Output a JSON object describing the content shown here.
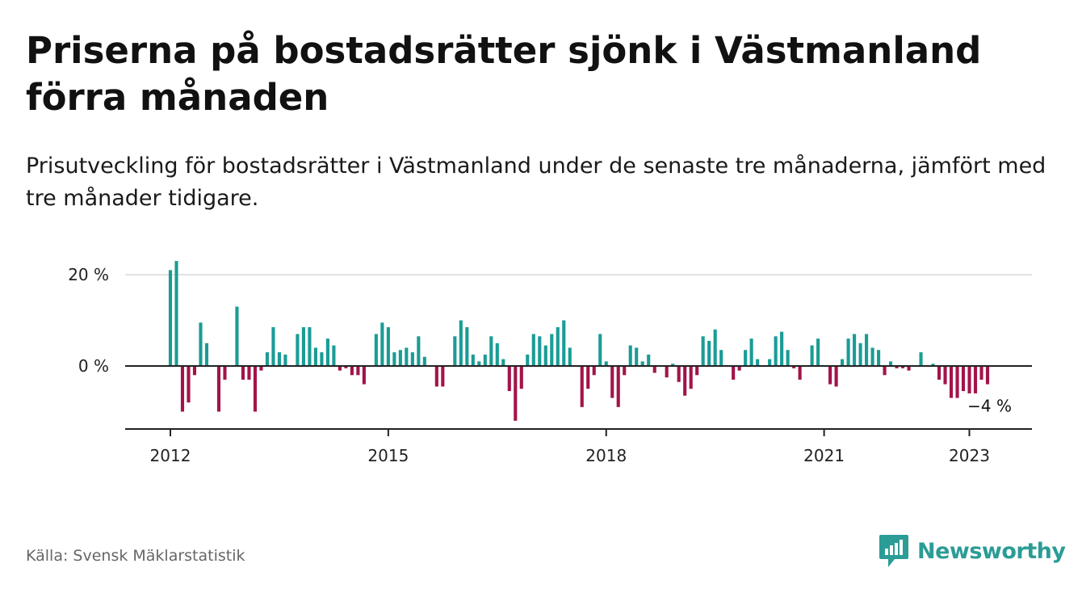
{
  "title": "Priserna på bostadsrätter sjönk i Västmanland förra månaden",
  "subtitle": "Prisutveckling för bostadsrätter i Västmanland under de senaste tre månaderna, jämfört med tre månader tidigare.",
  "source": "Källa: Svensk Mäklarstatistik",
  "brand": {
    "name": "Newsworthy",
    "icon": "newsworthy-logo-icon"
  },
  "colors": {
    "positive": "#1a9c95",
    "negative": "#a3134a",
    "axis": "#222222",
    "grid": "#d9d9d9"
  },
  "chart_data": {
    "type": "bar",
    "x_start": "2012-01",
    "x_labels": [
      "2012",
      "2015",
      "2018",
      "2021",
      "2023"
    ],
    "y_ticks": [
      0,
      20
    ],
    "y_tick_labels": [
      "0 %",
      "20 %"
    ],
    "ylim": [
      -13,
      23
    ],
    "last_value_label": "−4 %",
    "values": [
      21,
      23,
      -10,
      -8,
      -2,
      9.5,
      5,
      0,
      -10,
      -3,
      0,
      13,
      -3,
      -3,
      -10,
      -1,
      3,
      8.5,
      3,
      2.5,
      0,
      7,
      8.5,
      8.5,
      4,
      3,
      6,
      4.5,
      -1,
      -0.5,
      -2,
      -2,
      -4,
      0,
      7,
      9.5,
      8.5,
      3,
      3.5,
      4,
      3,
      6.5,
      2,
      0,
      -4.5,
      -4.5,
      0,
      6.5,
      10,
      8.5,
      2.5,
      1,
      2.5,
      6.5,
      5,
      1.5,
      -5.5,
      -12,
      -5,
      2.5,
      7,
      6.5,
      4.5,
      7,
      8.5,
      10,
      4,
      0,
      -9,
      -5,
      -2,
      7,
      1,
      -7,
      -9,
      -2,
      4.5,
      4,
      1,
      2.5,
      -1.5,
      0,
      -2.5,
      0.5,
      -3.5,
      -6.5,
      -5,
      -2,
      6.5,
      5.5,
      8,
      3.5,
      0,
      -3,
      -1,
      3.5,
      6,
      1.5,
      0,
      1.5,
      6.5,
      7.5,
      3.5,
      -0.5,
      -3,
      0,
      4.5,
      6,
      0,
      -4,
      -4.5,
      1.5,
      6,
      7,
      5,
      7,
      4,
      3.5,
      -2,
      1,
      -0.5,
      -0.5,
      -1,
      0,
      3,
      0,
      0.5,
      -3,
      -4,
      -7,
      -7,
      -5.5,
      -6,
      -6,
      -3,
      -4
    ]
  }
}
